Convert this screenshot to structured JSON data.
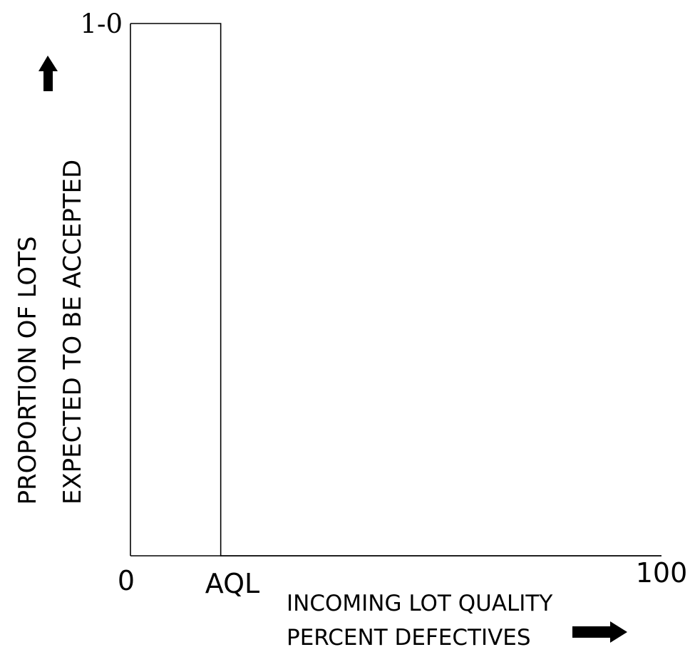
{
  "chart_data": {
    "type": "line",
    "title": "",
    "xlabel_lines": [
      "INCOMING LOT QUALITY",
      "PERCENT DEFECTIVES"
    ],
    "ylabel_lines": [
      "PROPORTION OF LOTS",
      "EXPECTED TO BE ACCEPTED"
    ],
    "x_ticks": [
      {
        "label": "0",
        "value": 0
      },
      {
        "label": "AQL",
        "value": 17
      },
      {
        "label": "100",
        "value": 100
      }
    ],
    "y_ticks": [
      {
        "label": "1-0",
        "value": 1
      }
    ],
    "xlim": [
      0,
      100
    ],
    "ylim": [
      0,
      1
    ],
    "grid": false,
    "series": [
      {
        "points": [
          [
            0,
            1
          ],
          [
            17,
            1
          ],
          [
            17,
            0
          ],
          [
            100,
            0
          ]
        ],
        "color": "#000000"
      }
    ],
    "arrows": [
      {
        "icon": "arrow-up-icon",
        "axis": "y"
      },
      {
        "icon": "arrow-right-icon",
        "axis": "x"
      }
    ]
  }
}
